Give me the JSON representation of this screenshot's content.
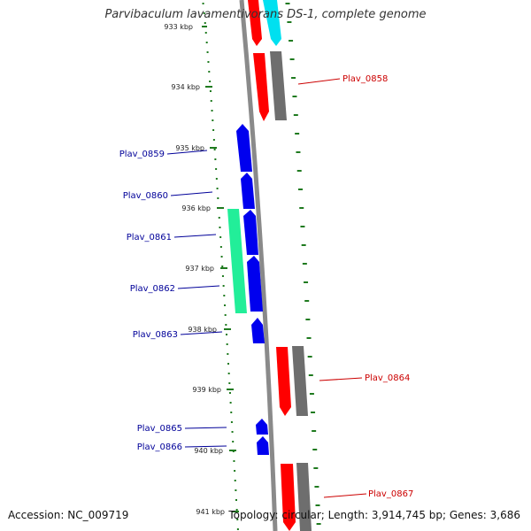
{
  "header": {
    "title": "Parvibaculum lavamentivorans DS-1, complete genome"
  },
  "footer": {
    "accession": "Accession: NC_009719",
    "summary": "Topology: circular; Length: 3,914,745 bp; Genes: 3,686"
  },
  "colors": {
    "backbone": "#8a8a8a",
    "tick": "#1f7a1f",
    "forward_cds": "#ff0000",
    "reverse_cds": "#0000ee",
    "forward_gene": "#6e6e6e",
    "rna": "#00e0f0",
    "other": "#22ee99",
    "forward_label": "#cc0000",
    "reverse_label": "#000099"
  },
  "ticks": [
    "933 kbp",
    "934 kbp",
    "935 kbp",
    "936 kbp",
    "937 kbp",
    "938 kbp",
    "939 kbp",
    "940 kbp",
    "941 kbp"
  ],
  "genes": [
    {
      "label": "Plav_0858",
      "strand": "forward"
    },
    {
      "label": "Plav_0859",
      "strand": "reverse"
    },
    {
      "label": "Plav_0860",
      "strand": "reverse"
    },
    {
      "label": "Plav_0861",
      "strand": "reverse"
    },
    {
      "label": "Plav_0862",
      "strand": "reverse"
    },
    {
      "label": "Plav_0863",
      "strand": "reverse"
    },
    {
      "label": "Plav_0864",
      "strand": "forward"
    },
    {
      "label": "Plav_0865",
      "strand": "reverse"
    },
    {
      "label": "Plav_0866",
      "strand": "reverse"
    },
    {
      "label": "Plav_0867",
      "strand": "forward"
    }
  ]
}
